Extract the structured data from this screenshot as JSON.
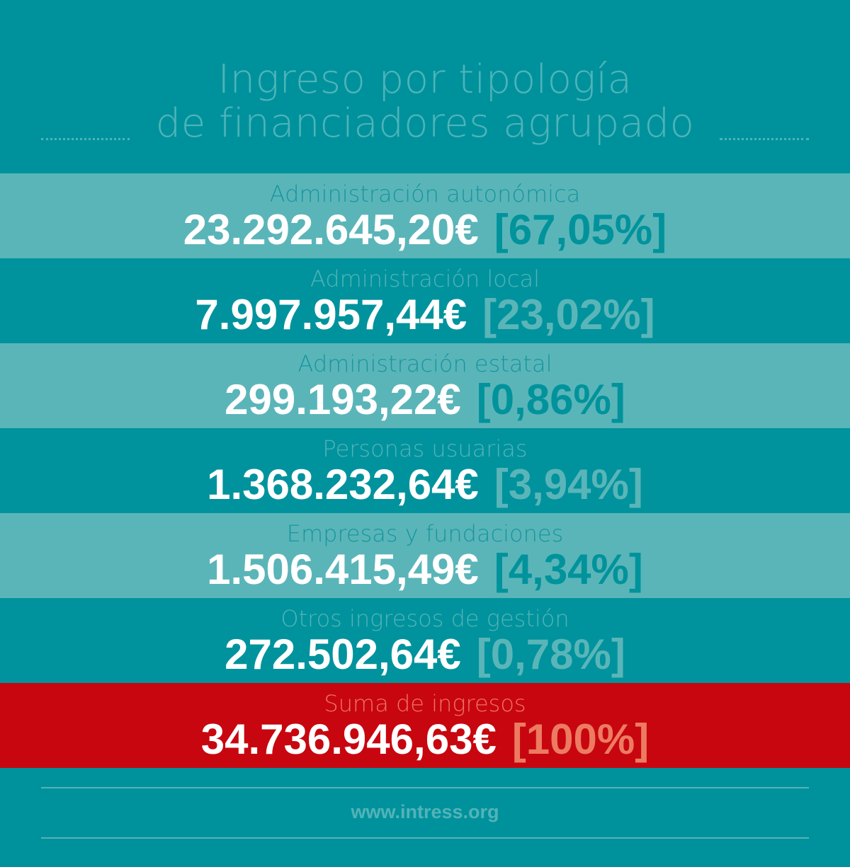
{
  "title": {
    "line1": "Ingreso por tipología",
    "line2": "de financiadores agrupado"
  },
  "rows": [
    {
      "label": "Administración autonómica",
      "amount": "23.292.645,20€",
      "percent": "[67,05%]"
    },
    {
      "label": "Administración local",
      "amount": "7.997.957,44€",
      "percent": "[23,02%]"
    },
    {
      "label": "Administración estatal",
      "amount": "299.193,22€",
      "percent": "[0,86%]"
    },
    {
      "label": "Personas usuarias",
      "amount": "1.368.232,64€",
      "percent": "[3,94%]"
    },
    {
      "label": "Empresas y fundaciones",
      "amount": "1.506.415,49€",
      "percent": "[4,34%]"
    },
    {
      "label": "Otros ingresos de gestión",
      "amount": "272.502,64€",
      "percent": "[0,78%]"
    }
  ],
  "total": {
    "label": "Suma de ingresos",
    "amount": "34.736.946,63€",
    "percent": "[100%]"
  },
  "footer": {
    "url": "www.intress.org"
  },
  "colors": {
    "background": "#00929c",
    "row_light": "#5ab5b9",
    "row_dark": "#00939d",
    "total": "#c8060f"
  }
}
